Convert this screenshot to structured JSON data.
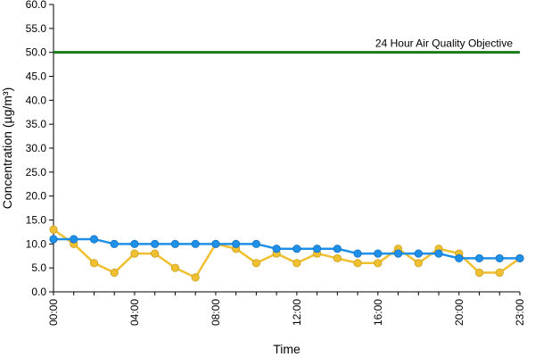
{
  "chart_data": {
    "type": "line",
    "title": "",
    "xlabel": "Time",
    "ylabel": "Concentration (µg/m³)",
    "ylim": [
      0,
      60
    ],
    "y_ticks": [
      "0.0",
      "5.0",
      "10.0",
      "15.0",
      "20.0",
      "25.0",
      "30.0",
      "35.0",
      "40.0",
      "45.0",
      "50.0",
      "55.0",
      "60.0"
    ],
    "x_tick_labels": [
      "00:00",
      "04:00",
      "08:00",
      "12:00",
      "16:00",
      "20:00",
      "23:00"
    ],
    "x_tick_hours": [
      0,
      4,
      8,
      12,
      16,
      20,
      23
    ],
    "x": [
      0,
      1,
      2,
      3,
      4,
      5,
      6,
      7,
      8,
      9,
      10,
      11,
      12,
      13,
      14,
      15,
      16,
      17,
      18,
      19,
      20,
      21,
      22,
      23
    ],
    "grid": false,
    "objective": {
      "label": "24 Hour Air Quality Objective",
      "value": 50,
      "color": "#1a7a1a"
    },
    "series": [
      {
        "color": "#f0c030",
        "values": [
          13,
          10,
          6,
          4,
          8,
          8,
          5,
          3,
          10,
          9,
          6,
          8,
          6,
          8,
          7,
          6,
          6,
          9,
          6,
          9,
          8,
          4,
          4,
          7
        ]
      },
      {
        "color": "#1e90e8",
        "values": [
          11,
          11,
          11,
          10,
          10,
          10,
          10,
          10,
          10,
          10,
          10,
          9,
          9,
          9,
          9,
          8,
          8,
          8,
          8,
          8,
          7,
          7,
          7,
          7
        ]
      }
    ]
  }
}
